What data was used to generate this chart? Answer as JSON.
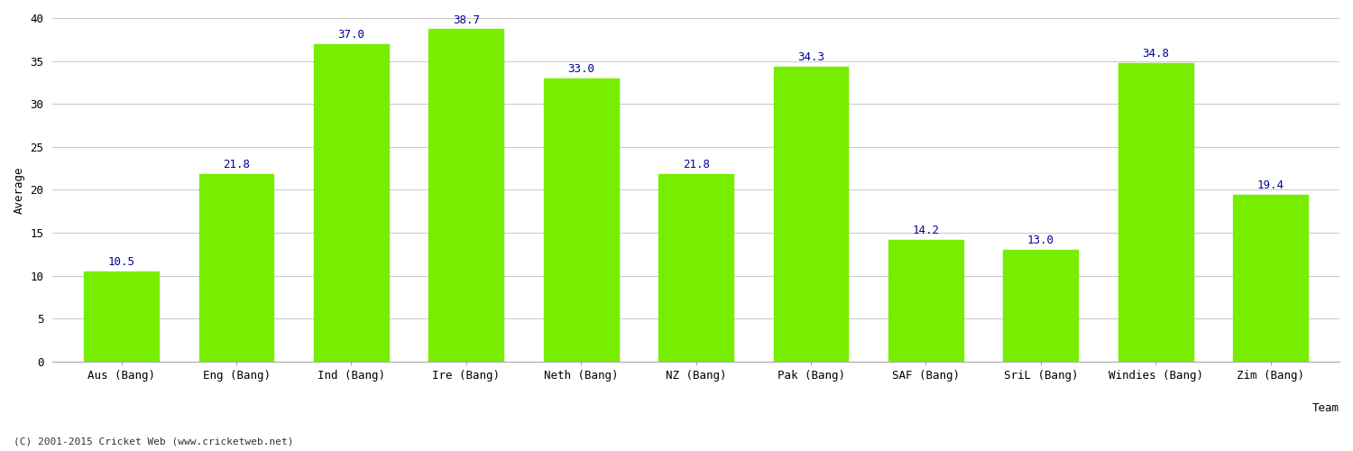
{
  "categories": [
    "Aus (Bang)",
    "Eng (Bang)",
    "Ind (Bang)",
    "Ire (Bang)",
    "Neth (Bang)",
    "NZ (Bang)",
    "Pak (Bang)",
    "SAF (Bang)",
    "SriL (Bang)",
    "Windies (Bang)",
    "Zim (Bang)"
  ],
  "values": [
    10.5,
    21.8,
    37.0,
    38.7,
    33.0,
    21.8,
    34.3,
    14.2,
    13.0,
    34.8,
    19.4
  ],
  "bar_color": "#77ee00",
  "bar_edge_color": "#77ee00",
  "label_color": "#000099",
  "ylabel": "Average",
  "ylim": [
    0,
    40
  ],
  "yticks": [
    0,
    5,
    10,
    15,
    20,
    25,
    30,
    35,
    40
  ],
  "grid_color": "#cccccc",
  "background_color": "#ffffff",
  "footer": "(C) 2001-2015 Cricket Web (www.cricketweb.net)",
  "label_fontsize": 9,
  "axis_label_fontsize": 9,
  "tick_fontsize": 9,
  "footer_fontsize": 8,
  "bar_width": 0.65
}
